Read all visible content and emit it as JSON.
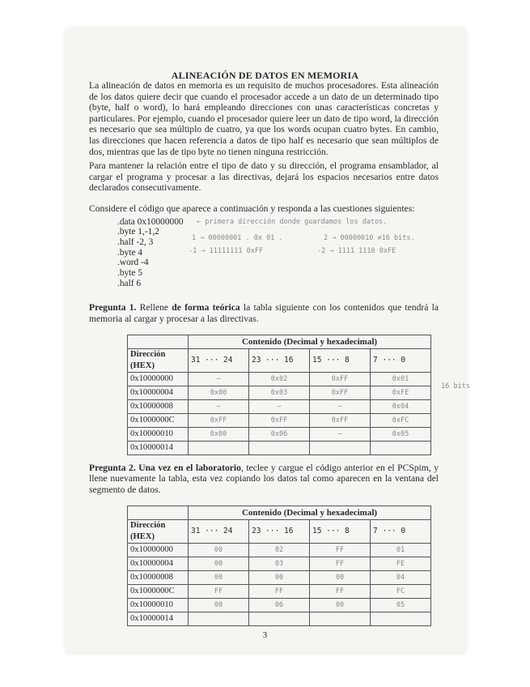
{
  "title": "ALINEACIÓN DE DATOS EN MEMORIA",
  "intro": "La alineación de datos en memoria es un requisito de muchos procesadores. Esta alineación de los datos quiere decir que cuando el procesador accede a un dato de un determinado tipo (byte, half o word), lo hará empleando direcciones con unas características concretas y particulares. Por ejemplo, cuando el procesador quiere leer un dato de tipo word, la dirección es necesario que sea múltiplo de cuatro, ya que los words ocupan cuatro bytes. En cambio, las direcciones que hacen referencia a datos de tipo half es necesario que sean múltiplos de dos, mientras que las de tipo byte no tienen ninguna restricción.",
  "intro2": "Para mantener la relación entre el tipo de dato y su dirección, el programa ensamblador, al cargar el programa y procesar a las directivas, dejará los espacios necesarios entre datos declarados consecutivamente.",
  "consider": "Considere el código que aparece a continuación y responda a las cuestiones siguientes:",
  "code": [
    ".data 0x10000000",
    ".byte 1,-1,2",
    ".half -2, 3",
    ".byte 4",
    ".word -4",
    ".byte 5",
    ".half 6"
  ],
  "handwritten_notes": [
    "← primera dirección donde guardamos los datos.",
    "1 → 00000001 .   0x 01 .",
    "2 → 00000010  ≠16 bits.",
    "-1 → 11111111   0xFF",
    "-2 → 1111 1110   0xFE"
  ],
  "q1": {
    "label": "Pregunta 1.",
    "pre": "Rellene",
    "bold": "de forma teórica",
    "post": "la tabla siguiente con los contenidos que tendrá la memoria al cargar y procesar a las directivas."
  },
  "q2": {
    "label": "Pregunta 2. Una vez en el laboratorio",
    "post": ", teclee y cargue el código anterior en el PCSpim, y llene nuevamente la tabla, esta vez copiando los datos tal como aparecen en la ventana del segmento de datos."
  },
  "table_header": "Contenido (Decimal y hexadecimal)",
  "col_headers": [
    "Dirección (HEX)",
    "31 ··· 24",
    "23 ··· 16",
    "15 ··· 8",
    "7 ··· 0"
  ],
  "table1": {
    "rows": [
      {
        "addr": "0x10000000",
        "c": [
          "—",
          "0x02",
          "0xFF",
          "0x01"
        ]
      },
      {
        "addr": "0x10000004",
        "c": [
          "0x00",
          "0x03",
          "0xFF",
          "0xFE"
        ]
      },
      {
        "addr": "0x10000008",
        "c": [
          "—",
          "—",
          "—",
          "0x04"
        ]
      },
      {
        "addr": "0x1000000C",
        "c": [
          "0xFF",
          "0xFF",
          "0xFF",
          "0xFC"
        ]
      },
      {
        "addr": "0x10000010",
        "c": [
          "0x00",
          "0x06",
          "—",
          "0x05"
        ]
      },
      {
        "addr": "0x10000014",
        "c": [
          "",
          "",
          "",
          ""
        ]
      }
    ],
    "side_note": "16 bits"
  },
  "table2": {
    "rows": [
      {
        "addr": "0x10000000",
        "c": [
          "00",
          "02",
          "FF",
          "01"
        ]
      },
      {
        "addr": "0x10000004",
        "c": [
          "00",
          "03",
          "FF",
          "FE"
        ]
      },
      {
        "addr": "0x10000008",
        "c": [
          "00",
          "00",
          "00",
          "04"
        ]
      },
      {
        "addr": "0x1000000C",
        "c": [
          "FF",
          "FF",
          "FF",
          "FC"
        ]
      },
      {
        "addr": "0x10000010",
        "c": [
          "00",
          "06",
          "00",
          "05"
        ]
      },
      {
        "addr": "0x10000014",
        "c": [
          "",
          "",
          "",
          ""
        ]
      }
    ]
  },
  "page_number": "3"
}
